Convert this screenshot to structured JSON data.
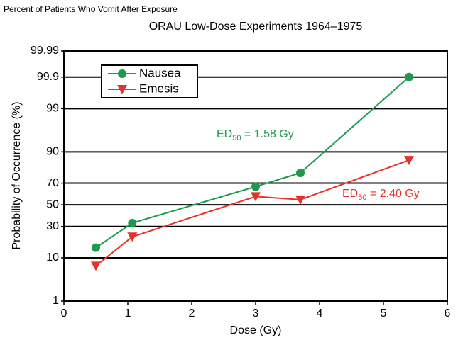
{
  "chart_data": {
    "type": "line",
    "subtitle": "Percent of Patients Who Vomit After Exposure",
    "title": "ORAU Low-Dose Experiments 1964–1975",
    "xlabel": "Dose (Gy)",
    "ylabel": "Probability of Occurrence (%)",
    "yscale": "probit",
    "xlim": [
      0,
      6
    ],
    "xticks": [
      0,
      1,
      2,
      3,
      4,
      5,
      6
    ],
    "ylim": [
      1,
      99.99
    ],
    "yticks": [
      1,
      10,
      30,
      50,
      70,
      90,
      99,
      99.9,
      99.99
    ],
    "grid": true,
    "legend": "upper left",
    "series": [
      {
        "name": "Nausea",
        "color": "#1e9a4c",
        "marker": "circle",
        "x": [
          0.5,
          1.07,
          3.0,
          3.7,
          5.4
        ],
        "values": [
          15,
          33,
          67,
          78,
          99.9
        ]
      },
      {
        "name": "Emesis",
        "color": "#e8312a",
        "marker": "triangle-down",
        "x": [
          0.5,
          1.07,
          3.0,
          3.7,
          5.4
        ],
        "values": [
          7,
          22,
          58,
          55,
          86
        ]
      }
    ],
    "annotations": [
      {
        "text": "ED",
        "sub": "50",
        "rest": " = 1.58 Gy",
        "color": "#1e9a4c"
      },
      {
        "text": "ED",
        "sub": "50",
        "rest": " = 2.40 Gy",
        "color": "#e8312a"
      }
    ]
  }
}
